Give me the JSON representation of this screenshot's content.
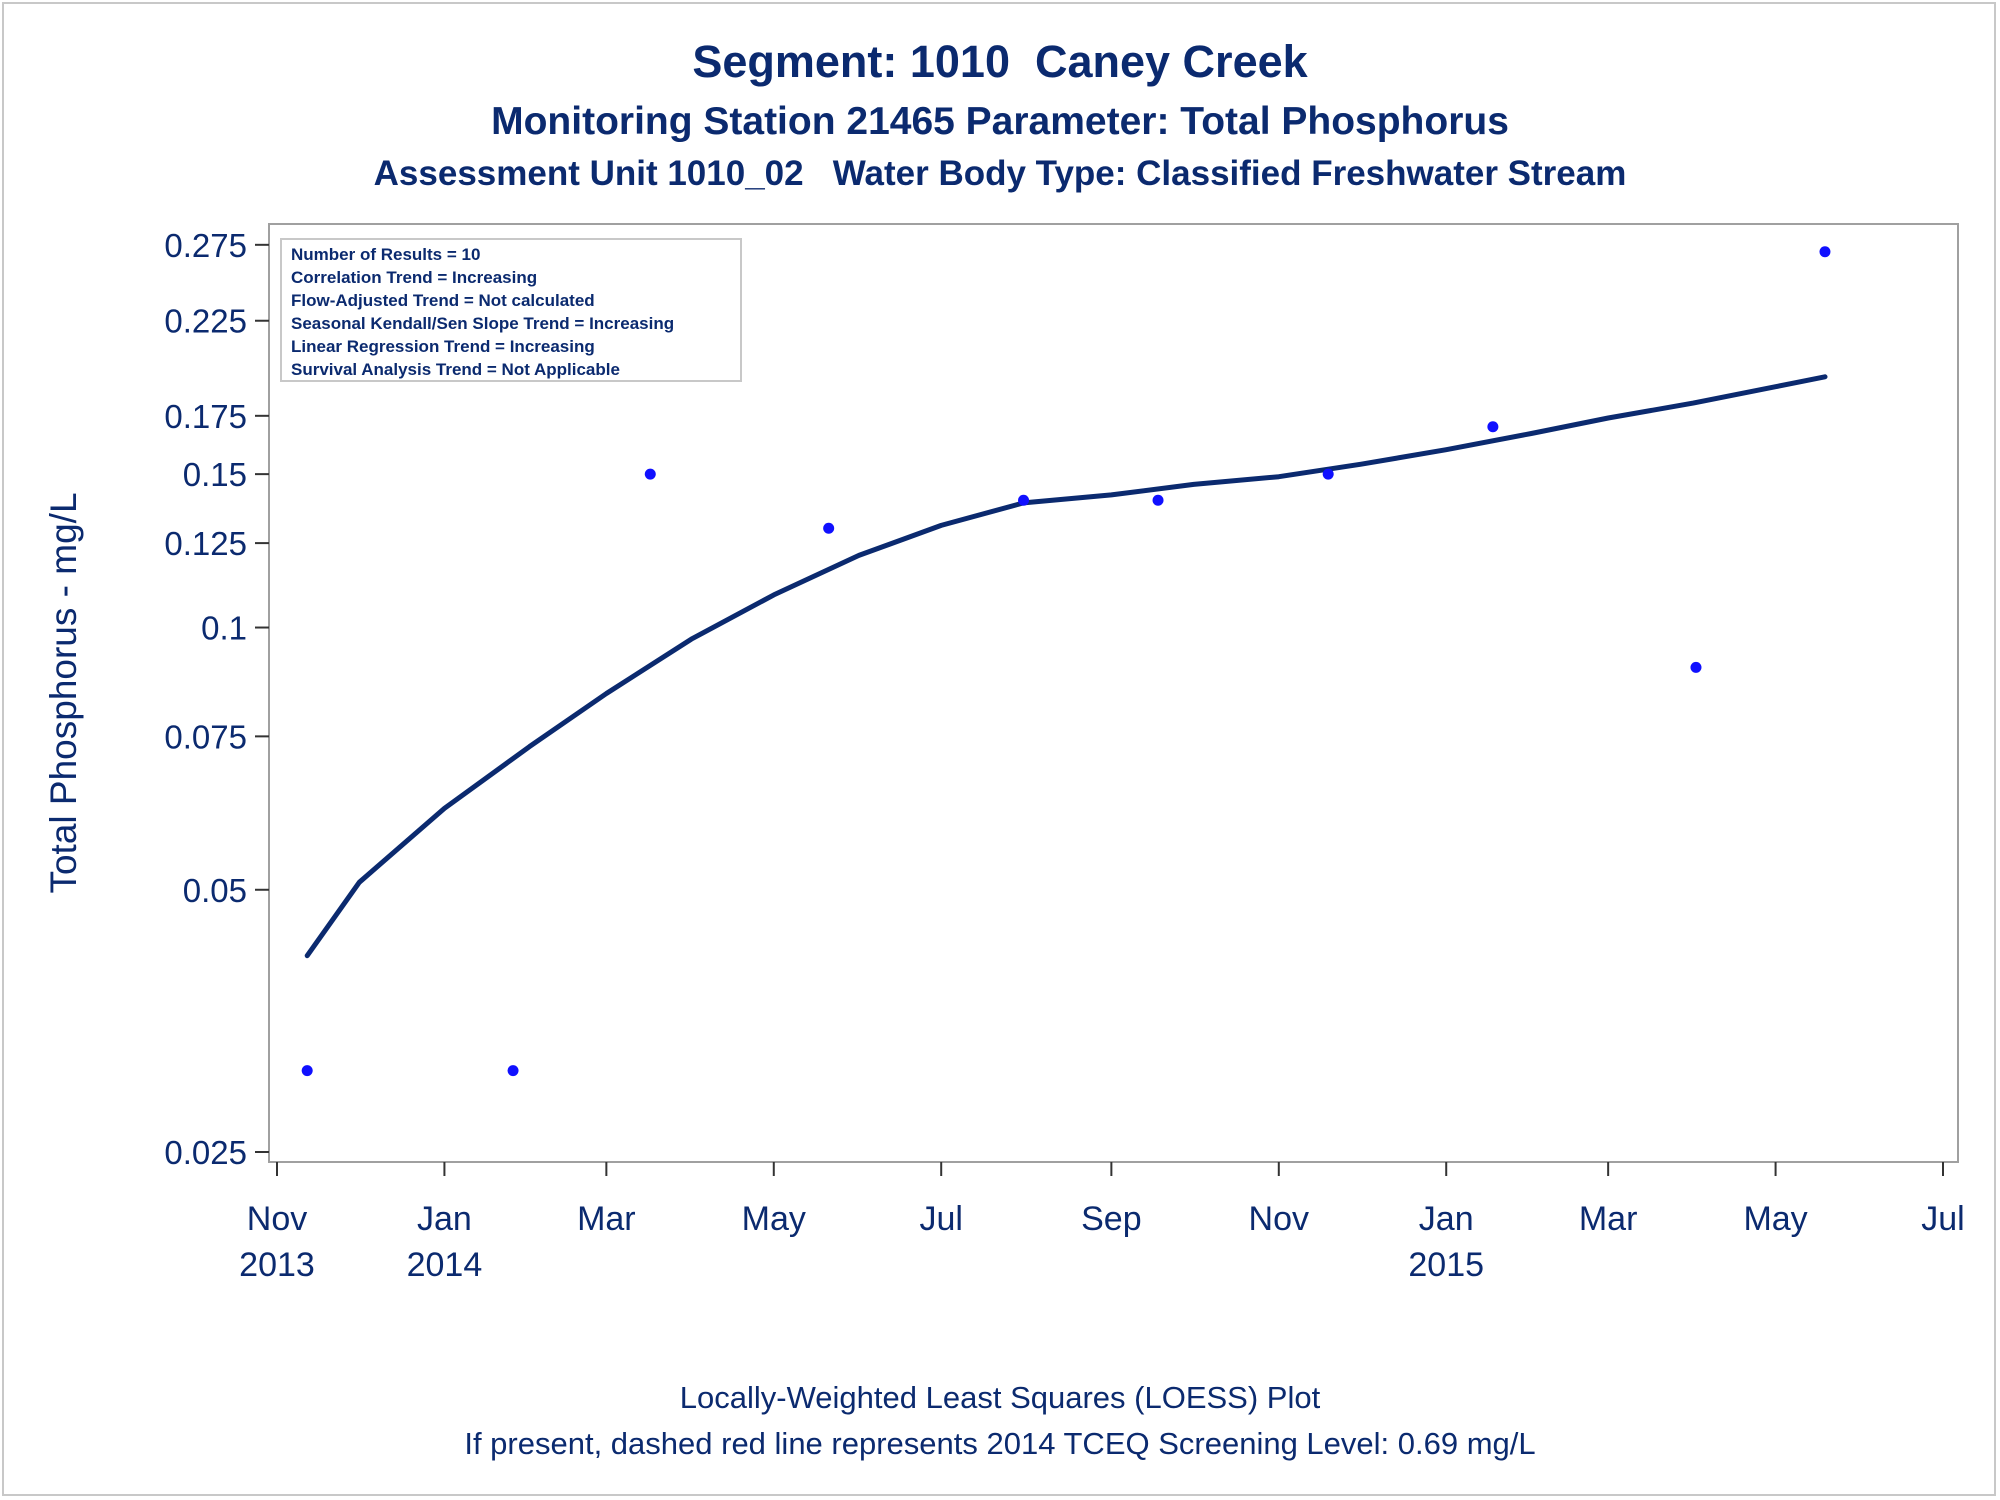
{
  "chart_data": {
    "type": "scatter",
    "title": "Segment: 1010  Caney Creek",
    "subtitle": "Monitoring Station 21465 Parameter: Total Phosphorus",
    "subtitle2": "Assessment Unit 1010_02   Water Body Type: Classified Freshwater Stream",
    "ylabel": "Total Phosphorus - mg/L",
    "yscale": "log",
    "ylim": [
      0.025,
      0.28
    ],
    "yticks": [
      0.025,
      0.05,
      0.075,
      0.1,
      0.125,
      0.15,
      0.175,
      0.225,
      0.275
    ],
    "ytick_labels": [
      "0.025",
      "0.05",
      "0.075",
      "0.1",
      "0.125",
      "0.15",
      "0.175",
      "0.225",
      "0.275"
    ],
    "xlim": [
      "2013-11-01",
      "2015-07-01"
    ],
    "xticks": [
      {
        "date": "2013-11-01",
        "label": "Nov",
        "year": "2013"
      },
      {
        "date": "2014-01-01",
        "label": "Jan",
        "year": "2014"
      },
      {
        "date": "2014-03-01",
        "label": "Mar",
        "year": ""
      },
      {
        "date": "2014-05-01",
        "label": "May",
        "year": ""
      },
      {
        "date": "2014-07-01",
        "label": "Jul",
        "year": ""
      },
      {
        "date": "2014-09-01",
        "label": "Sep",
        "year": ""
      },
      {
        "date": "2014-11-01",
        "label": "Nov",
        "year": ""
      },
      {
        "date": "2015-01-01",
        "label": "Jan",
        "year": "2015"
      },
      {
        "date": "2015-03-01",
        "label": "Mar",
        "year": ""
      },
      {
        "date": "2015-05-01",
        "label": "May",
        "year": ""
      },
      {
        "date": "2015-07-01",
        "label": "Jul",
        "year": ""
      }
    ],
    "points": [
      {
        "date": "2013-11-12",
        "value": 0.031
      },
      {
        "date": "2014-01-26",
        "value": 0.031
      },
      {
        "date": "2014-03-17",
        "value": 0.15
      },
      {
        "date": "2014-05-21",
        "value": 0.13
      },
      {
        "date": "2014-07-31",
        "value": 0.14
      },
      {
        "date": "2014-09-18",
        "value": 0.14
      },
      {
        "date": "2014-11-19",
        "value": 0.15
      },
      {
        "date": "2015-01-18",
        "value": 0.17
      },
      {
        "date": "2015-04-02",
        "value": 0.09
      },
      {
        "date": "2015-05-19",
        "value": 0.27
      }
    ],
    "loess": [
      {
        "date": "2013-11-12",
        "value": 0.042
      },
      {
        "date": "2013-12-01",
        "value": 0.051
      },
      {
        "date": "2014-01-01",
        "value": 0.062
      },
      {
        "date": "2014-02-01",
        "value": 0.073
      },
      {
        "date": "2014-03-01",
        "value": 0.084
      },
      {
        "date": "2014-04-01",
        "value": 0.097
      },
      {
        "date": "2014-05-01",
        "value": 0.109
      },
      {
        "date": "2014-06-01",
        "value": 0.121
      },
      {
        "date": "2014-07-01",
        "value": 0.131
      },
      {
        "date": "2014-07-31",
        "value": 0.139
      },
      {
        "date": "2014-09-01",
        "value": 0.142
      },
      {
        "date": "2014-10-01",
        "value": 0.146
      },
      {
        "date": "2014-11-01",
        "value": 0.149
      },
      {
        "date": "2014-12-01",
        "value": 0.154
      },
      {
        "date": "2015-01-01",
        "value": 0.16
      },
      {
        "date": "2015-02-01",
        "value": 0.167
      },
      {
        "date": "2015-03-01",
        "value": 0.174
      },
      {
        "date": "2015-04-01",
        "value": 0.181
      },
      {
        "date": "2015-05-01",
        "value": 0.189
      },
      {
        "date": "2015-05-19",
        "value": 0.194
      }
    ],
    "annotations": [
      "Number of Results = 10",
      "Correlation Trend = Increasing",
      "Flow-Adjusted Trend = Not calculated",
      "Seasonal Kendall/Sen Slope Trend = Increasing",
      "Linear Regression Trend = Increasing",
      "Survival Analysis Trend = Not Applicable"
    ],
    "legend_position": "top-left",
    "footnote1": "Locally-Weighted Least Squares (LOESS) Plot",
    "footnote2": "If present, dashed red line represents 2014 TCEQ Screening Level: 0.69 mg/L"
  },
  "colors": {
    "text": "#0b2a6f",
    "points": "#1010ff",
    "curve": "#0b2a6f",
    "frame": "#a0a0a0"
  }
}
